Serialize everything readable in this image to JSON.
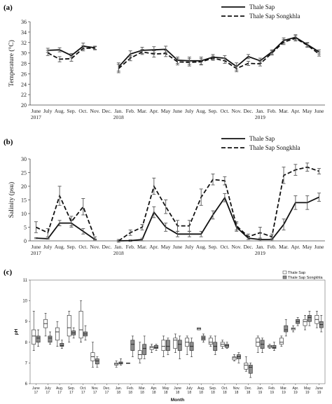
{
  "chart_data": [
    {
      "panel": "(a)",
      "type": "line",
      "ylabel": "Temperature (°C)",
      "ylim": [
        20,
        36
      ],
      "yticks": [
        20,
        22,
        24,
        26,
        28,
        30,
        32,
        34,
        36
      ],
      "categories": [
        "June\n2017",
        "July",
        "Aug.",
        "Sep.",
        "Oct.",
        "Nov.",
        "Dec.",
        "Jan.\n2018",
        "Feb.",
        "Mar.",
        "Apr.",
        "May",
        "June",
        "July",
        "Aug.",
        "Sep.",
        "Oct.",
        "Nov.",
        "Dec.",
        "Jan.\n2019",
        "Feb.",
        "Mar.",
        "Apr.",
        "May",
        "June"
      ],
      "legend_position": "top-right",
      "series": [
        {
          "name": "Thale Sap",
          "style": "solid",
          "values": [
            null,
            30.5,
            30.6,
            29.5,
            31.3,
            31.0,
            null,
            27.3,
            29.8,
            30.5,
            30.6,
            30.7,
            28.6,
            28.5,
            28.5,
            29.2,
            29.0,
            27.4,
            29.3,
            28.5,
            30.2,
            32.4,
            33.0,
            31.6,
            30.2
          ],
          "errors": [
            0,
            0.4,
            0.4,
            0.4,
            0.6,
            0.3,
            0,
            0.8,
            0.6,
            0.6,
            0.6,
            0.6,
            0.6,
            0.7,
            0.7,
            0.5,
            0.5,
            0.7,
            0.4,
            0.5,
            0.4,
            0.5,
            0.5,
            0.4,
            0.4
          ]
        },
        {
          "name": "Thale Sap Songkhla",
          "style": "dashed",
          "values": [
            null,
            30.0,
            28.8,
            28.9,
            30.9,
            30.9,
            null,
            27.0,
            29.0,
            30.2,
            29.8,
            29.9,
            28.3,
            28.2,
            28.3,
            29.0,
            28.5,
            27.0,
            28.0,
            27.9,
            30.0,
            32.1,
            32.8,
            31.5,
            29.8
          ],
          "errors": [
            0,
            0.5,
            0.5,
            0.5,
            0.5,
            0.3,
            0,
            0.8,
            0.5,
            0.5,
            0.6,
            0.6,
            0.6,
            0.7,
            0.6,
            0.4,
            0.5,
            0.6,
            0.4,
            0.4,
            0.4,
            0.5,
            0.5,
            0.4,
            0.4
          ]
        }
      ]
    },
    {
      "panel": "(b)",
      "type": "line",
      "ylabel": "Salinity (psu)",
      "ylim": [
        0,
        30
      ],
      "yticks": [
        0,
        5,
        10,
        15,
        20,
        25,
        30
      ],
      "categories": [
        "June\n2017",
        "July",
        "Aug.",
        "Sep.",
        "Oct.",
        "Nov.",
        "Dec.",
        "Jan.\n2018",
        "Feb.",
        "Mar.",
        "Apr.",
        "May",
        "June",
        "July",
        "Aug.",
        "Sep.",
        "Oct.",
        "Nov.",
        "Dec.",
        "Jan.\n2019",
        "Feb.",
        "Mar.",
        "Apr.",
        "May",
        "June"
      ],
      "legend_position": "top-right",
      "series": [
        {
          "name": "Thale Sap",
          "style": "solid",
          "values": [
            1.0,
            0.8,
            6.5,
            6.5,
            3.5,
            0.5,
            null,
            0.0,
            0.1,
            0.5,
            10.5,
            5.0,
            2.5,
            2.5,
            2.5,
            9.5,
            15.8,
            5.0,
            1.0,
            0.5,
            0.5,
            6.0,
            14.0,
            14.0,
            16.0
          ],
          "errors": [
            0.2,
            0.2,
            1.0,
            1.0,
            1.0,
            0.2,
            0,
            0.1,
            0.3,
            0.5,
            2.0,
            1.5,
            1.0,
            1.0,
            1.0,
            1.5,
            1.5,
            1.5,
            0.5,
            0.5,
            0.5,
            2.0,
            2.5,
            2.5,
            1.5
          ]
        },
        {
          "name": "Thale Sap Songkhla",
          "style": "dashed",
          "values": [
            5.0,
            3.0,
            16.5,
            7.0,
            12.5,
            1.0,
            null,
            0.0,
            3.0,
            5.0,
            20.0,
            12.5,
            5.5,
            5.5,
            16.0,
            22.5,
            22.0,
            5.5,
            1.5,
            3.0,
            1.5,
            24.0,
            26.0,
            27.0,
            25.5
          ],
          "errors": [
            2.0,
            1.5,
            3.5,
            2.0,
            3.0,
            0.5,
            0,
            0.5,
            1.0,
            1.0,
            3.0,
            2.5,
            2.0,
            2.0,
            3.0,
            2.0,
            1.5,
            1.5,
            1.0,
            2.0,
            1.0,
            3.0,
            2.0,
            1.5,
            1.0
          ]
        }
      ]
    },
    {
      "panel": "(c)",
      "type": "box",
      "xlabel": "Month",
      "ylabel": "pH",
      "ylim": [
        6,
        11
      ],
      "yticks": [
        6,
        7,
        8,
        9,
        10,
        11
      ],
      "categories": [
        "June\n17",
        "July\n17",
        "Aug.\n17",
        "Sep.\n17",
        "Oct.\n17",
        "Nov.\n17",
        "Dec.\n17",
        "Jan.\n18",
        "Feb.\n18",
        "Mar.\n18",
        "Apr.\n18",
        "May\n18",
        "June\n18",
        "July\n18",
        "Aug.\n18",
        "Sep.\n18",
        "Oct.\n18",
        "Nov.\n18",
        "Dec.\n18",
        "Jan.\n19",
        "Feb.\n19",
        "Mar.\n19",
        "Apr.\n19",
        "May\n19",
        "June\n19"
      ],
      "legend_position": "top-right",
      "series": [
        {
          "name": "Thale Sap",
          "fill": "#ffffff",
          "boxes": [
            [
              7.6,
              7.9,
              8.3,
              8.6,
              9.5
            ],
            [
              8.3,
              8.7,
              8.9,
              9.1,
              9.4
            ],
            [
              7.8,
              8.1,
              8.5,
              8.7,
              9.0
            ],
            [
              8.0,
              8.3,
              8.7,
              9.3,
              9.5
            ],
            [
              8.0,
              8.2,
              8.6,
              9.5,
              10.0
            ],
            [
              6.8,
              7.1,
              7.3,
              7.5,
              8.0
            ],
            null,
            [
              6.8,
              6.9,
              6.95,
              7.0,
              7.1
            ],
            [
              7.0,
              7.0,
              7.0,
              7.0,
              7.0
            ],
            [
              7.0,
              7.2,
              7.4,
              7.6,
              8.0
            ],
            [
              7.5,
              7.65,
              7.75,
              7.8,
              7.9
            ],
            [
              7.3,
              7.6,
              7.8,
              8.1,
              8.3
            ],
            [
              7.5,
              7.7,
              8.1,
              8.2,
              8.4
            ],
            [
              7.4,
              7.8,
              8.0,
              8.2,
              8.3
            ],
            [
              8.6,
              8.6,
              8.65,
              8.7,
              8.7
            ],
            [
              7.8,
              7.9,
              8.0,
              8.2,
              8.3
            ],
            [
              7.7,
              7.8,
              7.9,
              8.0,
              8.1
            ],
            [
              7.1,
              7.15,
              7.25,
              7.3,
              7.4
            ],
            [
              6.6,
              6.7,
              6.9,
              7.0,
              7.3
            ],
            [
              7.5,
              7.8,
              8.0,
              8.2,
              8.3
            ],
            [
              7.7,
              7.75,
              7.8,
              7.85,
              7.9
            ],
            [
              7.8,
              7.9,
              8.0,
              8.2,
              8.3
            ],
            [
              8.5,
              8.6,
              8.65,
              8.7,
              8.8
            ],
            [
              8.6,
              8.8,
              9.0,
              9.1,
              9.3
            ],
            [
              8.7,
              8.9,
              9.1,
              9.3,
              9.5
            ]
          ]
        },
        {
          "name": "Thale Sap Songkhla",
          "fill": "#8c8c8c",
          "boxes": [
            [
              7.8,
              8.0,
              8.2,
              8.3,
              8.6
            ],
            [
              7.9,
              8.0,
              8.2,
              8.3,
              8.5
            ],
            [
              7.7,
              7.8,
              7.85,
              7.95,
              8.1
            ],
            [
              8.2,
              8.35,
              8.45,
              8.55,
              8.7
            ],
            [
              8.1,
              8.3,
              8.4,
              8.5,
              8.8
            ],
            [
              6.8,
              6.95,
              7.1,
              7.2,
              7.3
            ],
            null,
            [
              6.9,
              6.95,
              7.0,
              7.05,
              7.2
            ],
            [
              7.3,
              7.6,
              7.9,
              8.1,
              8.3
            ],
            [
              7.2,
              7.4,
              7.7,
              7.9,
              8.3
            ],
            [
              7.6,
              7.7,
              7.75,
              7.85,
              7.9
            ],
            [
              7.4,
              7.6,
              7.8,
              8.1,
              8.2
            ],
            [
              7.2,
              7.6,
              7.9,
              8.1,
              8.3
            ],
            [
              7.3,
              7.6,
              7.8,
              8.0,
              8.2
            ],
            [
              8.0,
              8.1,
              8.2,
              8.3,
              8.4
            ],
            [
              7.4,
              7.6,
              7.8,
              8.0,
              8.3
            ],
            [
              7.7,
              7.75,
              7.85,
              7.9,
              8.0
            ],
            [
              7.0,
              7.2,
              7.3,
              7.4,
              7.5
            ],
            [
              6.3,
              6.5,
              6.8,
              6.9,
              7.0
            ],
            [
              7.5,
              7.7,
              7.9,
              8.1,
              8.2
            ],
            [
              7.6,
              7.7,
              7.75,
              7.85,
              8.0
            ],
            [
              8.3,
              8.5,
              8.6,
              8.8,
              9.1
            ],
            [
              8.8,
              8.9,
              9.0,
              9.1,
              9.2
            ],
            [
              8.8,
              9.0,
              9.2,
              9.3,
              9.5
            ],
            [
              8.5,
              8.7,
              8.85,
              9.0,
              9.3
            ]
          ]
        }
      ]
    }
  ]
}
